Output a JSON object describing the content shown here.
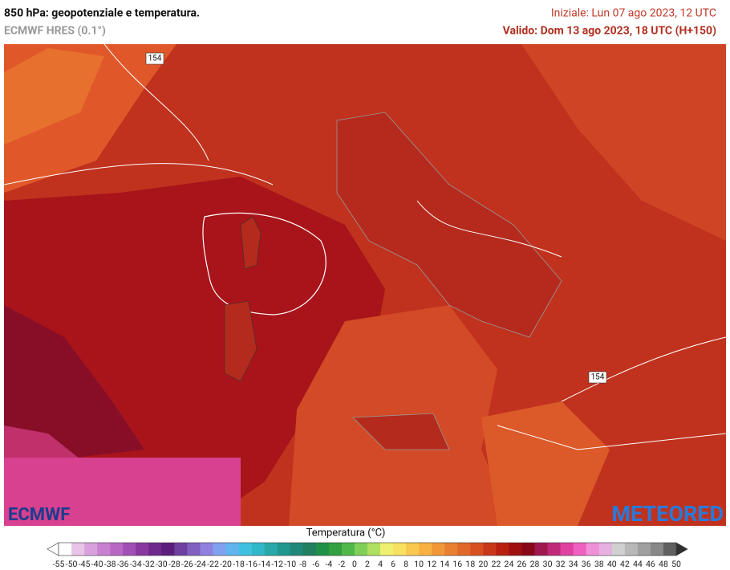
{
  "header": {
    "title": "850 hPa: geopotenziale e temperatura.",
    "model": "ECMWF HRES (0.1°)",
    "init": "Iniziale: Lun 07 ago 2023, 12 UTC",
    "valid": "Valido: Dom 13 ago 2023, 18 UTC (H+150)"
  },
  "map": {
    "contour_labels": [
      "154",
      "154"
    ],
    "logo_left": "ECMWF",
    "logo_right": "METEORED"
  },
  "legend": {
    "title": "Temperatura (°C)",
    "ticks": [
      -55,
      -50,
      -45,
      -40,
      -38,
      -36,
      -34,
      -32,
      -30,
      -28,
      -26,
      -24,
      -22,
      -20,
      -18,
      -16,
      -14,
      -12,
      -10,
      -8,
      -6,
      -4,
      -2,
      0,
      2,
      4,
      6,
      8,
      10,
      12,
      14,
      16,
      18,
      20,
      22,
      24,
      26,
      28,
      30,
      32,
      34,
      36,
      38,
      40,
      42,
      44,
      46,
      48,
      50
    ],
    "colors": [
      "#ffffff",
      "#e8c4e8",
      "#d8a0dc",
      "#c880d0",
      "#b868c4",
      "#a050b4",
      "#8838a0",
      "#70288c",
      "#5c1e7c",
      "#7040a0",
      "#8060c0",
      "#9080e0",
      "#80a0f0",
      "#60b4f0",
      "#40c0e0",
      "#30b8c8",
      "#28a8a8",
      "#209890",
      "#208878",
      "#208060",
      "#209048",
      "#30a040",
      "#50b848",
      "#80d058",
      "#b0e060",
      "#f0f070",
      "#f8e060",
      "#f8c850",
      "#f8b040",
      "#f09838",
      "#e88030",
      "#e06828",
      "#d85020",
      "#c83818",
      "#b82010",
      "#a01010",
      "#880818",
      "#a01850",
      "#c02878",
      "#e040a0",
      "#f060c0",
      "#f090d8",
      "#e8b0e0",
      "#d0d0d0",
      "#b8b8b8",
      "#a0a0a0",
      "#888888",
      "#606060"
    ]
  }
}
